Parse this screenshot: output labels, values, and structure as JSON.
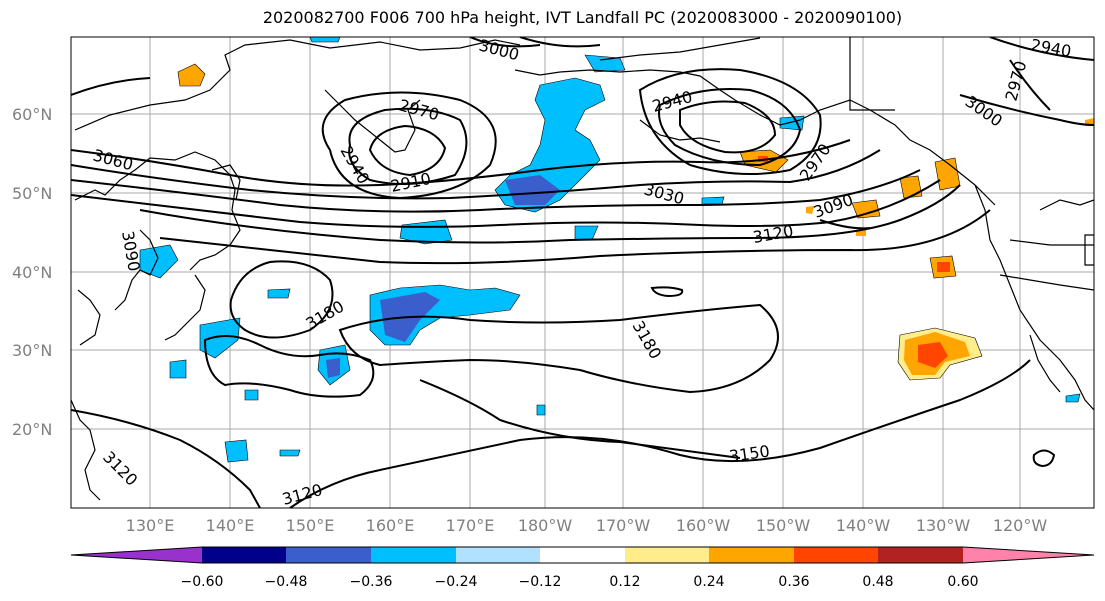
{
  "title": "2020082700 F006 700 hPa height, IVT Landfall PC (2020083000 - 2020090100)",
  "lat_labels": [
    "60°N",
    "50°N",
    "40°N",
    "30°N",
    "20°N"
  ],
  "lon_labels": [
    "130°E",
    "140°E",
    "150°E",
    "160°E",
    "170°E",
    "180°W",
    "170°W",
    "160°W",
    "150°W",
    "140°W",
    "130°W",
    "120°W"
  ],
  "contour_labels": [
    "3000",
    "2970",
    "2910",
    "2940",
    "3060",
    "3030",
    "2940",
    "2970",
    "3090",
    "3120",
    "3180",
    "3180",
    "3150",
    "3120",
    "3120",
    "3090",
    "2940",
    "3000",
    "2970"
  ],
  "colorbar": {
    "tick_labels": [
      "−0.60",
      "−0.48",
      "−0.36",
      "−0.24",
      "−0.12",
      "0.12",
      "0.24",
      "0.36",
      "0.48",
      "0.60"
    ],
    "colors": [
      "#9932cc",
      "#00008b",
      "#3a5fcd",
      "#00bfff",
      "#b0e2ff",
      "#ffffff",
      "#ffec8b",
      "#ffa500",
      "#ff4500",
      "#b22222",
      "#ff82ab"
    ]
  },
  "colors": {
    "neg_strong": "#3a5fcd",
    "neg_mid": "#00bfff",
    "pos_mid": "#ffa500",
    "pos_strong": "#ff4500",
    "pos_light": "#ffec8b"
  }
}
